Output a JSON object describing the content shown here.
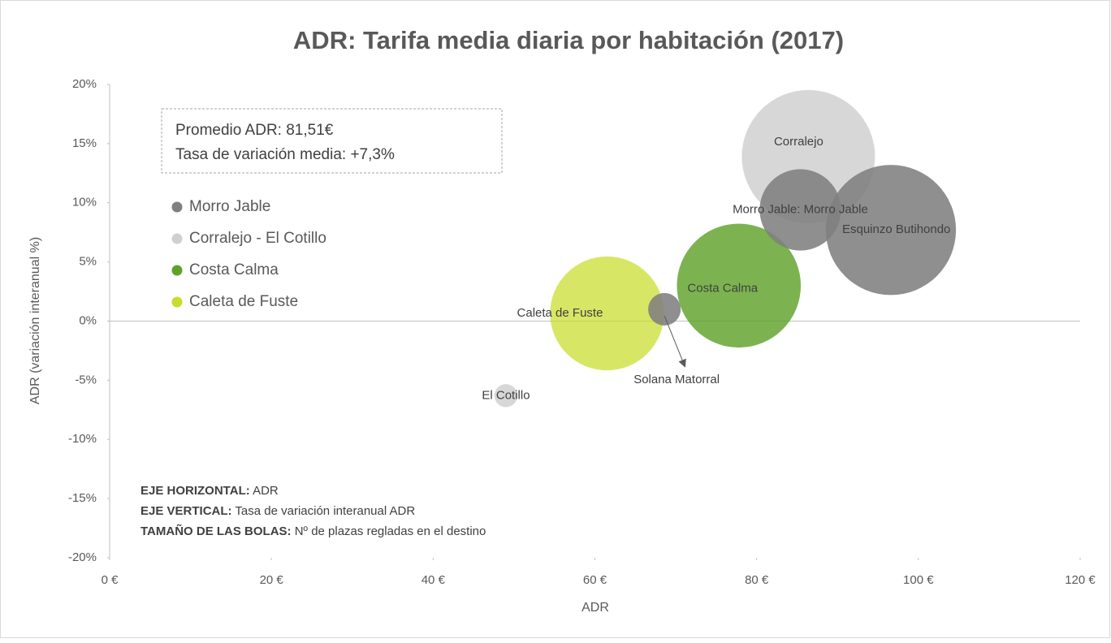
{
  "chart_data": {
    "type": "bubble",
    "title": "ADR: Tarifa media diaria por habitación (2017)",
    "x_label": "ADR",
    "y_label": "ADR (variación interanual %)",
    "xlim": [
      0,
      120
    ],
    "xticks": [
      {
        "value": 0,
        "label": "0 €"
      },
      {
        "value": 20,
        "label": "20 €"
      },
      {
        "value": 40,
        "label": "40 €"
      },
      {
        "value": 60,
        "label": "60 €"
      },
      {
        "value": 80,
        "label": "80 €"
      },
      {
        "value": 100,
        "label": "100 €"
      },
      {
        "value": 120,
        "label": "120 €"
      }
    ],
    "ylim": [
      -20,
      20
    ],
    "yticks": [
      {
        "value": -20,
        "label": "-20%"
      },
      {
        "value": -15,
        "label": "-15%"
      },
      {
        "value": -10,
        "label": "-10%"
      },
      {
        "value": -5,
        "label": "-5%"
      },
      {
        "value": 0,
        "label": "0%"
      },
      {
        "value": 5,
        "label": "5%"
      },
      {
        "value": 10,
        "label": "10%"
      },
      {
        "value": 15,
        "label": "15%"
      },
      {
        "value": 20,
        "label": "20%"
      }
    ],
    "legend_position": "upper left",
    "series": [
      {
        "name": "Morro Jable",
        "color": "#7f7f7f",
        "x": [
          85.4,
          96.6,
          68.6
        ],
        "values": [
          9.4,
          7.7,
          1.0
        ],
        "sizes": [
          2500,
          6400,
          400
        ],
        "labels": [
          "Morro Jable: Morro Jable",
          "Esquinzo Butihondo",
          "Solana Matorral"
        ]
      },
      {
        "name": "Corralejo - El Cotillo",
        "color": "#d0d0d0",
        "x": [
          86.4,
          49.0
        ],
        "values": [
          13.9,
          -6.3
        ],
        "sizes": [
          6700,
          200
        ],
        "labels": [
          "Corralejo",
          "El Cotillo"
        ]
      },
      {
        "name": "Costa Calma",
        "color": "#5fa22a",
        "x": [
          77.8
        ],
        "values": [
          3.0
        ],
        "sizes": [
          5800
        ],
        "labels": [
          "Costa Calma"
        ]
      },
      {
        "name": "Caleta de Fuste",
        "color": "#c9dc2a",
        "x": [
          61.5
        ],
        "values": [
          0.65
        ],
        "sizes": [
          4900
        ],
        "labels": [
          "Caleta de Fuste"
        ]
      }
    ],
    "annotations": [
      "Promedio ADR: 81,51€",
      "Tasa de variación media: +7,3%"
    ],
    "notes": [
      {
        "bold": "EJE HORIZONTAL:",
        "text": " ADR"
      },
      {
        "bold": "EJE VERTICAL:",
        "text": " Tasa de variación interanual ADR"
      },
      {
        "bold": "TAMAÑO DE LAS BOLAS:",
        "text": " Nº de plazas regladas en el destino"
      }
    ]
  }
}
